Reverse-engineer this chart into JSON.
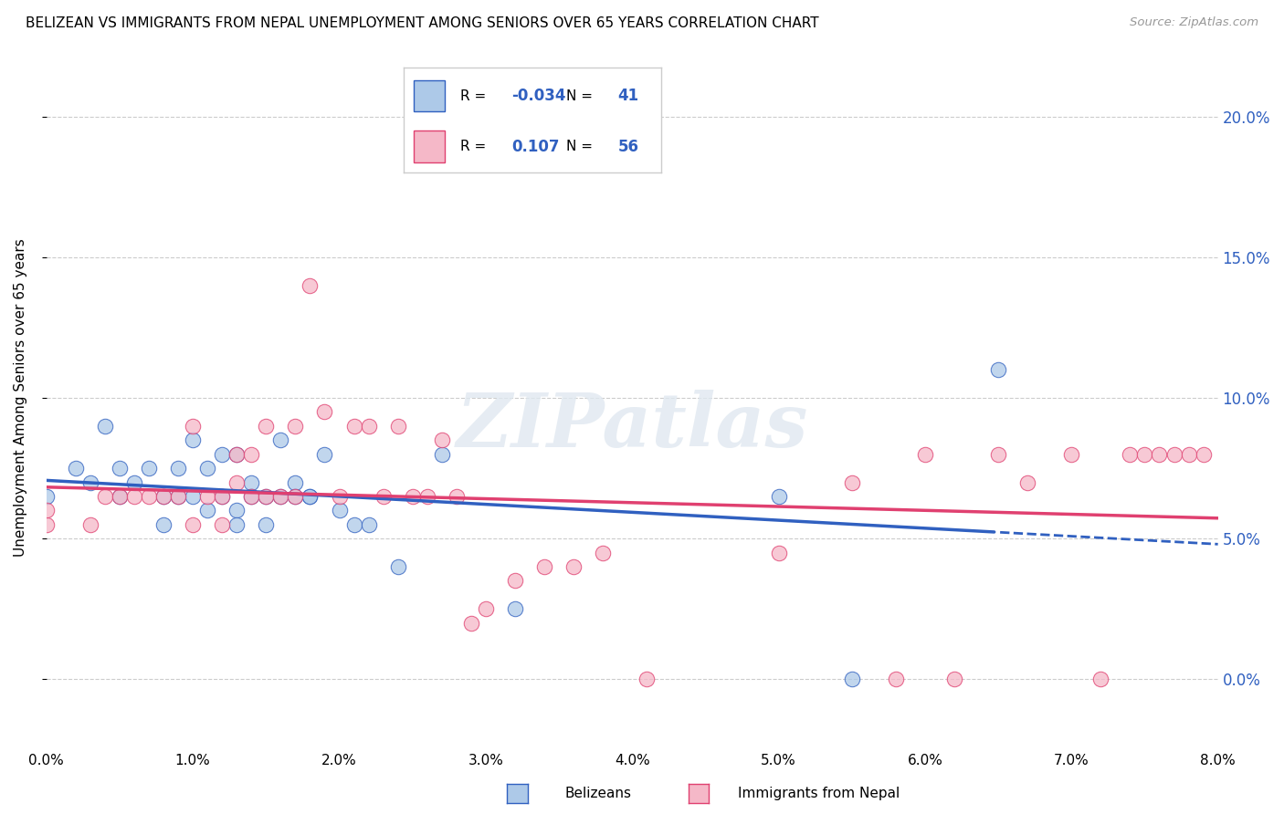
{
  "title": "BELIZEAN VS IMMIGRANTS FROM NEPAL UNEMPLOYMENT AMONG SENIORS OVER 65 YEARS CORRELATION CHART",
  "source": "Source: ZipAtlas.com",
  "ylabel": "Unemployment Among Seniors over 65 years",
  "legend_label1": "Belizeans",
  "legend_label2": "Immigrants from Nepal",
  "R1": -0.034,
  "N1": 41,
  "R2": 0.107,
  "N2": 56,
  "color1": "#adc9e8",
  "color2": "#f5b8c8",
  "line_color1": "#3060c0",
  "line_color2": "#e04070",
  "xlim": [
    0.0,
    0.08
  ],
  "ylim": [
    -0.025,
    0.225
  ],
  "xticks": [
    0.0,
    0.01,
    0.02,
    0.03,
    0.04,
    0.05,
    0.06,
    0.07,
    0.08
  ],
  "yticks": [
    0.0,
    0.05,
    0.1,
    0.15,
    0.2
  ],
  "watermark": "ZIPatlas",
  "blue_x": [
    0.0,
    0.002,
    0.003,
    0.004,
    0.005,
    0.005,
    0.006,
    0.007,
    0.008,
    0.008,
    0.009,
    0.009,
    0.01,
    0.01,
    0.011,
    0.011,
    0.012,
    0.012,
    0.013,
    0.013,
    0.013,
    0.014,
    0.014,
    0.015,
    0.015,
    0.016,
    0.016,
    0.017,
    0.017,
    0.018,
    0.018,
    0.019,
    0.02,
    0.021,
    0.022,
    0.024,
    0.027,
    0.032,
    0.05,
    0.055,
    0.065
  ],
  "blue_y": [
    0.065,
    0.075,
    0.07,
    0.09,
    0.065,
    0.075,
    0.07,
    0.075,
    0.065,
    0.055,
    0.065,
    0.075,
    0.065,
    0.085,
    0.06,
    0.075,
    0.065,
    0.08,
    0.08,
    0.06,
    0.055,
    0.07,
    0.065,
    0.065,
    0.055,
    0.065,
    0.085,
    0.07,
    0.065,
    0.065,
    0.065,
    0.08,
    0.06,
    0.055,
    0.055,
    0.04,
    0.08,
    0.025,
    0.065,
    0.0,
    0.11
  ],
  "pink_x": [
    0.0,
    0.0,
    0.003,
    0.004,
    0.005,
    0.006,
    0.007,
    0.008,
    0.009,
    0.01,
    0.01,
    0.011,
    0.012,
    0.012,
    0.013,
    0.013,
    0.014,
    0.014,
    0.015,
    0.015,
    0.016,
    0.017,
    0.017,
    0.018,
    0.019,
    0.02,
    0.021,
    0.022,
    0.023,
    0.024,
    0.025,
    0.026,
    0.027,
    0.028,
    0.029,
    0.03,
    0.032,
    0.034,
    0.036,
    0.038,
    0.041,
    0.05,
    0.055,
    0.058,
    0.06,
    0.062,
    0.065,
    0.067,
    0.07,
    0.072,
    0.074,
    0.075,
    0.076,
    0.077,
    0.078,
    0.079
  ],
  "pink_y": [
    0.055,
    0.06,
    0.055,
    0.065,
    0.065,
    0.065,
    0.065,
    0.065,
    0.065,
    0.055,
    0.09,
    0.065,
    0.055,
    0.065,
    0.07,
    0.08,
    0.065,
    0.08,
    0.065,
    0.09,
    0.065,
    0.065,
    0.09,
    0.14,
    0.095,
    0.065,
    0.09,
    0.09,
    0.065,
    0.09,
    0.065,
    0.065,
    0.085,
    0.065,
    0.02,
    0.025,
    0.035,
    0.04,
    0.04,
    0.045,
    0.0,
    0.045,
    0.07,
    0.0,
    0.08,
    0.0,
    0.08,
    0.07,
    0.08,
    0.0,
    0.08,
    0.08,
    0.08,
    0.08,
    0.08,
    0.08
  ]
}
